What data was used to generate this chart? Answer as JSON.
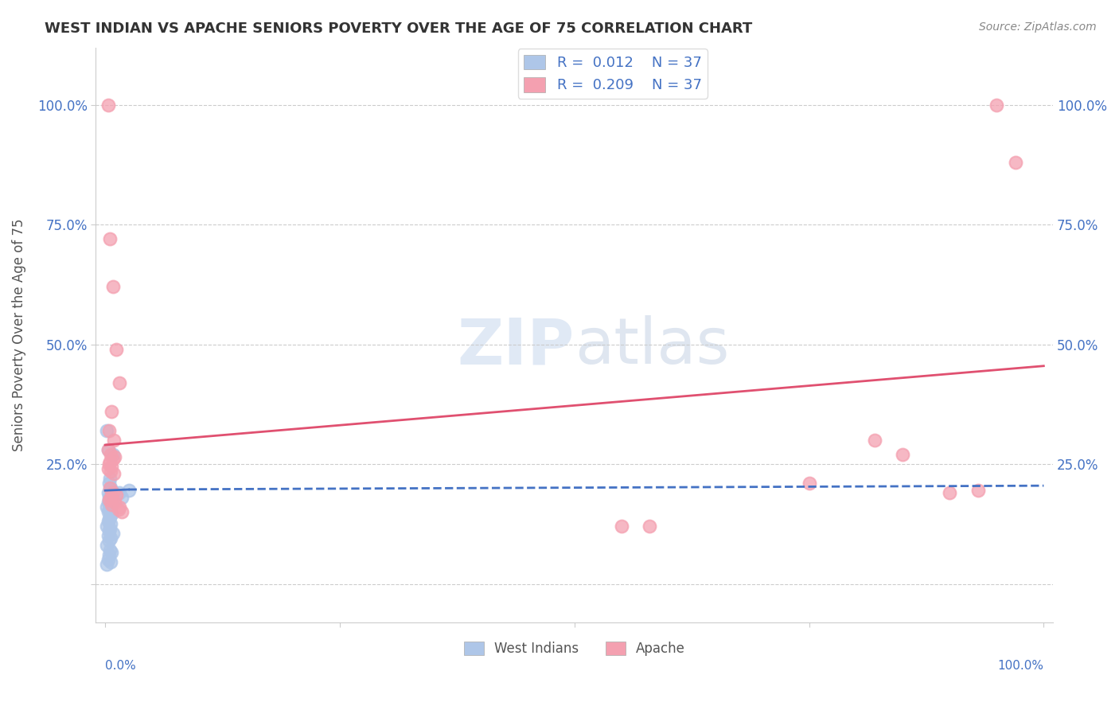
{
  "title": "WEST INDIAN VS APACHE SENIORS POVERTY OVER THE AGE OF 75 CORRELATION CHART",
  "source": "Source: ZipAtlas.com",
  "ylabel": "Seniors Poverty Over the Age of 75",
  "ytick_values": [
    0,
    0.25,
    0.5,
    0.75,
    1.0
  ],
  "xtick_values": [
    0,
    0.25,
    0.5,
    0.75,
    1.0
  ],
  "watermark_zip": "ZIP",
  "watermark_atlas": "atlas",
  "background_color": "#ffffff",
  "grid_color": "#cccccc",
  "west_indian_color": "#aec6e8",
  "apache_color": "#f4a0b0",
  "west_indian_line_color": "#4472c4",
  "apache_line_color": "#e05070",
  "title_color": "#333333",
  "source_color": "#888888",
  "axis_label_color": "#4472c4",
  "legend_text_color": "#4472c4",
  "bottom_legend_color": "#555555",
  "west_indian_scatter": [
    [
      0.002,
      0.32
    ],
    [
      0.008,
      0.27
    ],
    [
      0.003,
      0.28
    ],
    [
      0.005,
      0.22
    ],
    [
      0.004,
      0.21
    ],
    [
      0.006,
      0.2
    ],
    [
      0.003,
      0.19
    ],
    [
      0.007,
      0.195
    ],
    [
      0.004,
      0.18
    ],
    [
      0.005,
      0.175
    ],
    [
      0.003,
      0.17
    ],
    [
      0.006,
      0.165
    ],
    [
      0.002,
      0.16
    ],
    [
      0.004,
      0.155
    ],
    [
      0.003,
      0.15
    ],
    [
      0.007,
      0.145
    ],
    [
      0.005,
      0.14
    ],
    [
      0.004,
      0.135
    ],
    [
      0.003,
      0.13
    ],
    [
      0.006,
      0.125
    ],
    [
      0.002,
      0.12
    ],
    [
      0.005,
      0.115
    ],
    [
      0.004,
      0.11
    ],
    [
      0.008,
      0.105
    ],
    [
      0.003,
      0.1
    ],
    [
      0.006,
      0.095
    ],
    [
      0.004,
      0.09
    ],
    [
      0.002,
      0.08
    ],
    [
      0.005,
      0.07
    ],
    [
      0.007,
      0.065
    ],
    [
      0.004,
      0.06
    ],
    [
      0.003,
      0.05
    ],
    [
      0.006,
      0.045
    ],
    [
      0.002,
      0.04
    ],
    [
      0.015,
      0.19
    ],
    [
      0.018,
      0.18
    ],
    [
      0.025,
      0.195
    ]
  ],
  "apache_scatter": [
    [
      0.003,
      1.0
    ],
    [
      0.005,
      0.72
    ],
    [
      0.008,
      0.62
    ],
    [
      0.012,
      0.49
    ],
    [
      0.015,
      0.42
    ],
    [
      0.007,
      0.36
    ],
    [
      0.004,
      0.32
    ],
    [
      0.009,
      0.3
    ],
    [
      0.003,
      0.28
    ],
    [
      0.006,
      0.27
    ],
    [
      0.01,
      0.265
    ],
    [
      0.008,
      0.26
    ],
    [
      0.005,
      0.255
    ],
    [
      0.004,
      0.25
    ],
    [
      0.007,
      0.245
    ],
    [
      0.003,
      0.24
    ],
    [
      0.006,
      0.235
    ],
    [
      0.009,
      0.23
    ],
    [
      0.005,
      0.2
    ],
    [
      0.008,
      0.19
    ],
    [
      0.012,
      0.185
    ],
    [
      0.006,
      0.18
    ],
    [
      0.004,
      0.175
    ],
    [
      0.01,
      0.17
    ],
    [
      0.007,
      0.165
    ],
    [
      0.015,
      0.16
    ],
    [
      0.014,
      0.155
    ],
    [
      0.018,
      0.15
    ],
    [
      0.55,
      0.12
    ],
    [
      0.58,
      0.12
    ],
    [
      0.75,
      0.21
    ],
    [
      0.82,
      0.3
    ],
    [
      0.85,
      0.27
    ],
    [
      0.9,
      0.19
    ],
    [
      0.93,
      0.195
    ],
    [
      0.95,
      1.0
    ],
    [
      0.97,
      0.88
    ]
  ],
  "wi_line_x0": 0.0,
  "wi_line_y0": 0.195,
  "wi_line_x1_solid": 0.025,
  "wi_line_y1_solid": 0.197,
  "wi_line_x1_dash": 1.0,
  "wi_line_y1_dash": 0.205,
  "ap_line_x0": 0.0,
  "ap_line_y0": 0.29,
  "ap_line_x1": 1.0,
  "ap_line_y1": 0.455
}
